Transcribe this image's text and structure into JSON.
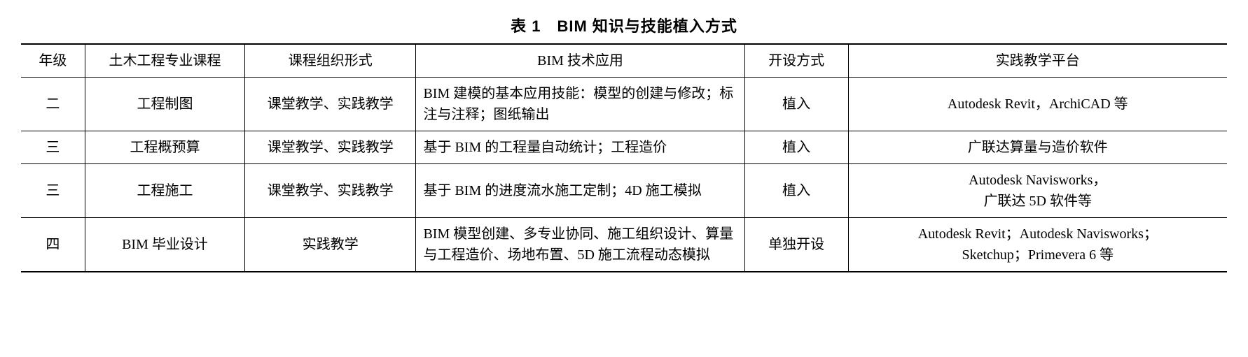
{
  "caption": "表 1　BIM 知识与技能植入方式",
  "columns": [
    "年级",
    "土木工程专业课程",
    "课程组织形式",
    "BIM 技术应用",
    "开设方式",
    "实践教学平台"
  ],
  "rows": [
    {
      "grade": "二",
      "course": "工程制图",
      "org": "课堂教学、实践教学",
      "app": "BIM 建模的基本应用技能：模型的创建与修改；标注与注释；图纸输出",
      "mode": "植入",
      "platform": "Autodesk Revit，ArchiCAD 等"
    },
    {
      "grade": "三",
      "course": "工程概预算",
      "org": "课堂教学、实践教学",
      "app": "基于 BIM 的工程量自动统计；工程造价",
      "mode": "植入",
      "platform": "广联达算量与造价软件"
    },
    {
      "grade": "三",
      "course": "工程施工",
      "org": "课堂教学、实践教学",
      "app": "基于 BIM 的进度流水施工定制；4D 施工模拟",
      "mode": "植入",
      "platform": "Autodesk Navisworks，\n广联达 5D 软件等"
    },
    {
      "grade": "四",
      "course": "BIM 毕业设计",
      "org": "实践教学",
      "app": "BIM 模型创建、多专业协同、施工组织设计、算量与工程造价、场地布置、5D 施工流程动态模拟",
      "mode": "单独开设",
      "platform": "Autodesk Revit；Autodesk Navisworks；\nSketchup；Primevera 6 等"
    }
  ]
}
